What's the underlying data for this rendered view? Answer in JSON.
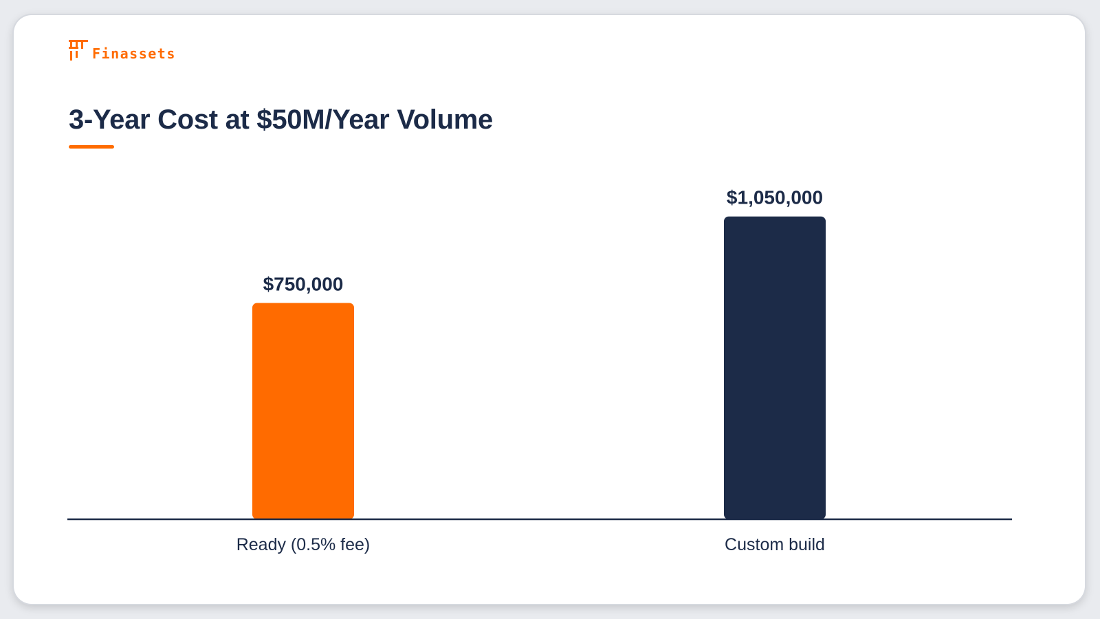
{
  "brand": {
    "logo_text": "Finassets",
    "accent_color": "#ff6b00",
    "icon": "finassets-logo-icon"
  },
  "title": "3-Year Cost at $50M/Year Volume",
  "chart_data": {
    "type": "bar",
    "categories": [
      "Ready (0.5% fee)",
      "Custom build"
    ],
    "values": [
      750000,
      1050000
    ],
    "value_labels": [
      "$750,000",
      "$1,050,000"
    ],
    "colors": [
      "#ff6b00",
      "#1c2b48"
    ],
    "ylim": [
      0,
      1500000
    ],
    "grid": false,
    "legend": "none"
  }
}
